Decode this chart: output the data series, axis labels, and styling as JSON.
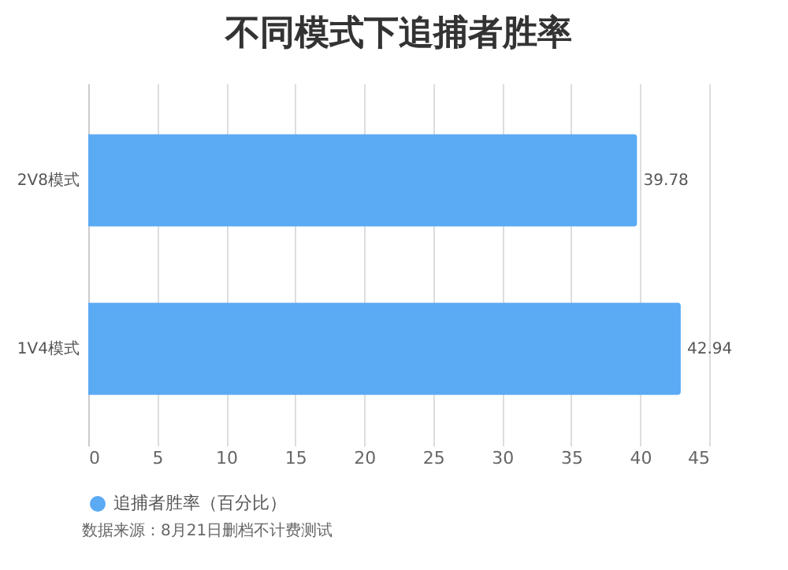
{
  "chart_data": {
    "type": "bar",
    "title": "不同模式下追捕者胜率",
    "orientation": "horizontal",
    "categories": [
      "2V8模式",
      "1V4模式"
    ],
    "series": [
      {
        "name": "追捕者胜率（百分比）",
        "color": "#5aaaf4",
        "values": [
          39.78,
          42.94
        ]
      }
    ],
    "xlim": [
      0,
      45
    ],
    "xticks": [
      0,
      5,
      10,
      15,
      20,
      25,
      30,
      35,
      40,
      45
    ],
    "grid": "x",
    "data_labels": true,
    "legend": "bottom",
    "annotations": [
      "数据来源：8月21日删档不计费测试"
    ]
  }
}
